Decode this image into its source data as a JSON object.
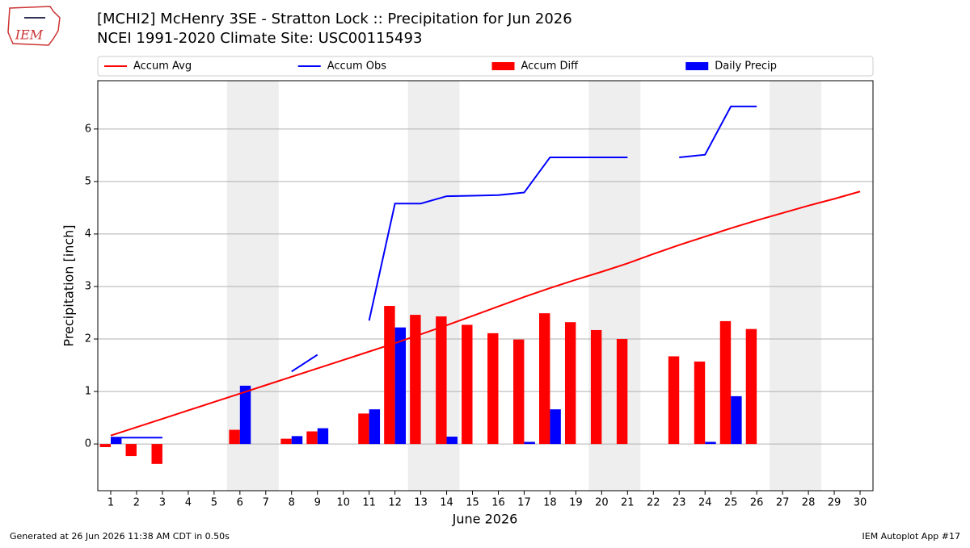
{
  "chart_data": {
    "type": "combo",
    "title": "[MCHI2] McHenry 3SE - Stratton Lock :: Precipitation for Jun 2026",
    "subtitle": "NCEI 1991-2020 Climate Site: USC00115493",
    "logo_text": "IEM",
    "xlabel": "June 2026",
    "ylabel": "Precipitation [inch]",
    "footer_left": "Generated at 26 Jun 2026 11:38 AM CDT in 0.50s",
    "footer_right": "IEM Autoplot App #17",
    "x": [
      1,
      2,
      3,
      4,
      5,
      6,
      7,
      8,
      9,
      10,
      11,
      12,
      13,
      14,
      15,
      16,
      17,
      18,
      19,
      20,
      21,
      22,
      23,
      24,
      25,
      26,
      27,
      28,
      29,
      30
    ],
    "xlim": [
      0.5,
      30.5
    ],
    "xticks": [
      1,
      2,
      3,
      4,
      5,
      6,
      7,
      8,
      9,
      10,
      11,
      12,
      13,
      14,
      15,
      16,
      17,
      18,
      19,
      20,
      21,
      22,
      23,
      24,
      25,
      26,
      27,
      28,
      29,
      30
    ],
    "ylim": [
      -0.89,
      6.92
    ],
    "yticks": [
      0,
      1,
      2,
      3,
      4,
      5,
      6
    ],
    "grid": true,
    "legend": "top",
    "shaded_x_ranges": [
      [
        5.5,
        7.5
      ],
      [
        12.5,
        14.5
      ],
      [
        19.5,
        21.5
      ],
      [
        26.5,
        28.5
      ]
    ],
    "series": [
      {
        "name": "Accum Avg",
        "type": "line",
        "color": "#ff0000",
        "values": [
          0.16,
          0.32,
          0.48,
          0.64,
          0.8,
          0.96,
          1.12,
          1.28,
          1.44,
          1.6,
          1.76,
          1.92,
          2.09,
          2.26,
          2.44,
          2.62,
          2.8,
          2.97,
          3.13,
          3.28,
          3.44,
          3.62,
          3.79,
          3.95,
          4.11,
          4.26,
          4.4,
          4.54,
          4.67,
          4.81
        ]
      },
      {
        "name": "Accum Obs",
        "type": "line",
        "color": "#0000ff",
        "values": [
          0.12,
          0.12,
          0.12,
          null,
          null,
          null,
          null,
          1.38,
          1.7,
          null,
          2.35,
          4.58,
          4.58,
          4.72,
          4.73,
          4.74,
          4.79,
          5.46,
          5.46,
          5.46,
          5.46,
          null,
          5.46,
          5.51,
          6.43,
          6.43,
          null,
          null,
          null,
          null
        ]
      },
      {
        "name": "Accum Diff",
        "type": "bar",
        "offset": "left",
        "color": "#ff0000",
        "values": [
          -0.06,
          -0.23,
          -0.38,
          null,
          null,
          0.27,
          null,
          0.1,
          0.24,
          null,
          0.58,
          2.63,
          2.46,
          2.43,
          2.27,
          2.11,
          1.99,
          2.49,
          2.32,
          2.17,
          2.0,
          null,
          1.67,
          1.57,
          2.34,
          2.19,
          null,
          null,
          null,
          null
        ]
      },
      {
        "name": "Daily Precip",
        "type": "bar",
        "offset": "right",
        "color": "#0000ff",
        "values": [
          0.12,
          0,
          0,
          null,
          null,
          1.11,
          null,
          0.15,
          0.3,
          null,
          0.66,
          2.22,
          0,
          0.14,
          0,
          0,
          0.04,
          0.66,
          0,
          0,
          0,
          null,
          0,
          0.04,
          0.91,
          0,
          null,
          null,
          null,
          null
        ]
      }
    ]
  }
}
